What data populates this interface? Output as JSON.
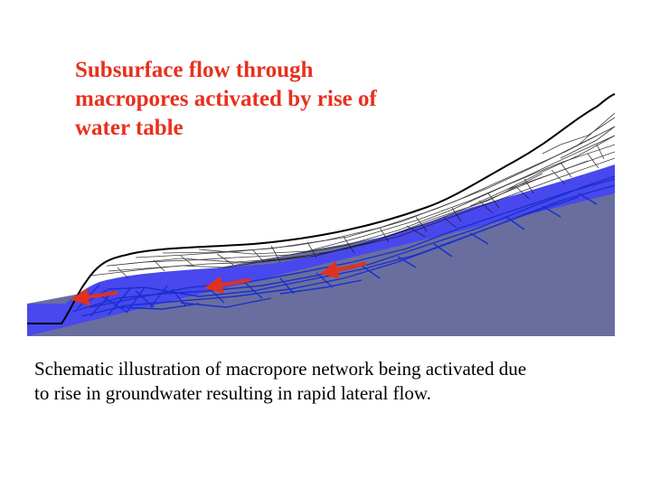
{
  "slide": {
    "title_lines": [
      "Subsurface flow through",
      "macropores activated by rise of",
      "water table"
    ],
    "caption_lines": [
      "Schematic illustration of macropore network being activated due",
      "to rise in groundwater resulting in rapid lateral flow."
    ]
  },
  "colors": {
    "title": "#e8301e",
    "bedrock": "#6a6e9e",
    "saturated_zone": "#4848ee",
    "macropore_saturated": "#1a2fd0",
    "macropore_unsaturated": "#1a1a1a",
    "flow_arrow": "#e0321f",
    "hillslope_outline": "#000000"
  }
}
